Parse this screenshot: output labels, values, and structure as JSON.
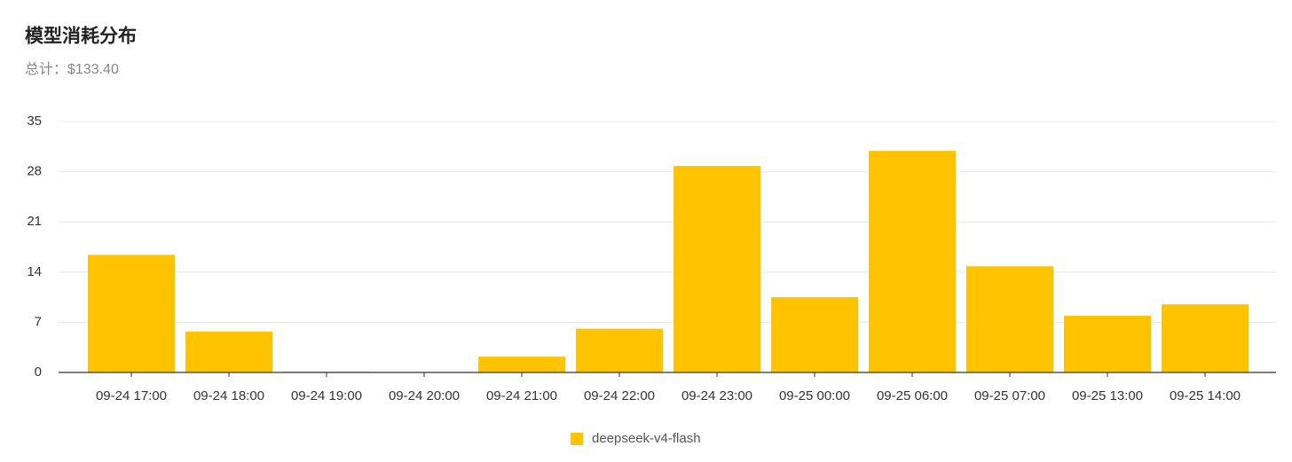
{
  "chart_data": {
    "type": "bar",
    "title": "模型消耗分布",
    "subtitle": "总计：$133.40",
    "categories": [
      "09-24 17:00",
      "09-24 18:00",
      "09-24 19:00",
      "09-24 20:00",
      "09-24 21:00",
      "09-24 22:00",
      "09-24 23:00",
      "09-25 00:00",
      "09-25 06:00",
      "09-25 07:00",
      "09-25 13:00",
      "09-25 14:00"
    ],
    "series": [
      {
        "name": "deepseek-v4-flash",
        "color": "#ffc300",
        "values": [
          16.4,
          5.7,
          0.1,
          0,
          2.2,
          6.1,
          28.8,
          10.5,
          30.9,
          14.8,
          7.9,
          9.5
        ]
      }
    ],
    "ylim": [
      0,
      35
    ],
    "yticks": [
      0,
      7,
      14,
      21,
      28,
      35
    ],
    "grid": true,
    "legend": "bottom"
  }
}
